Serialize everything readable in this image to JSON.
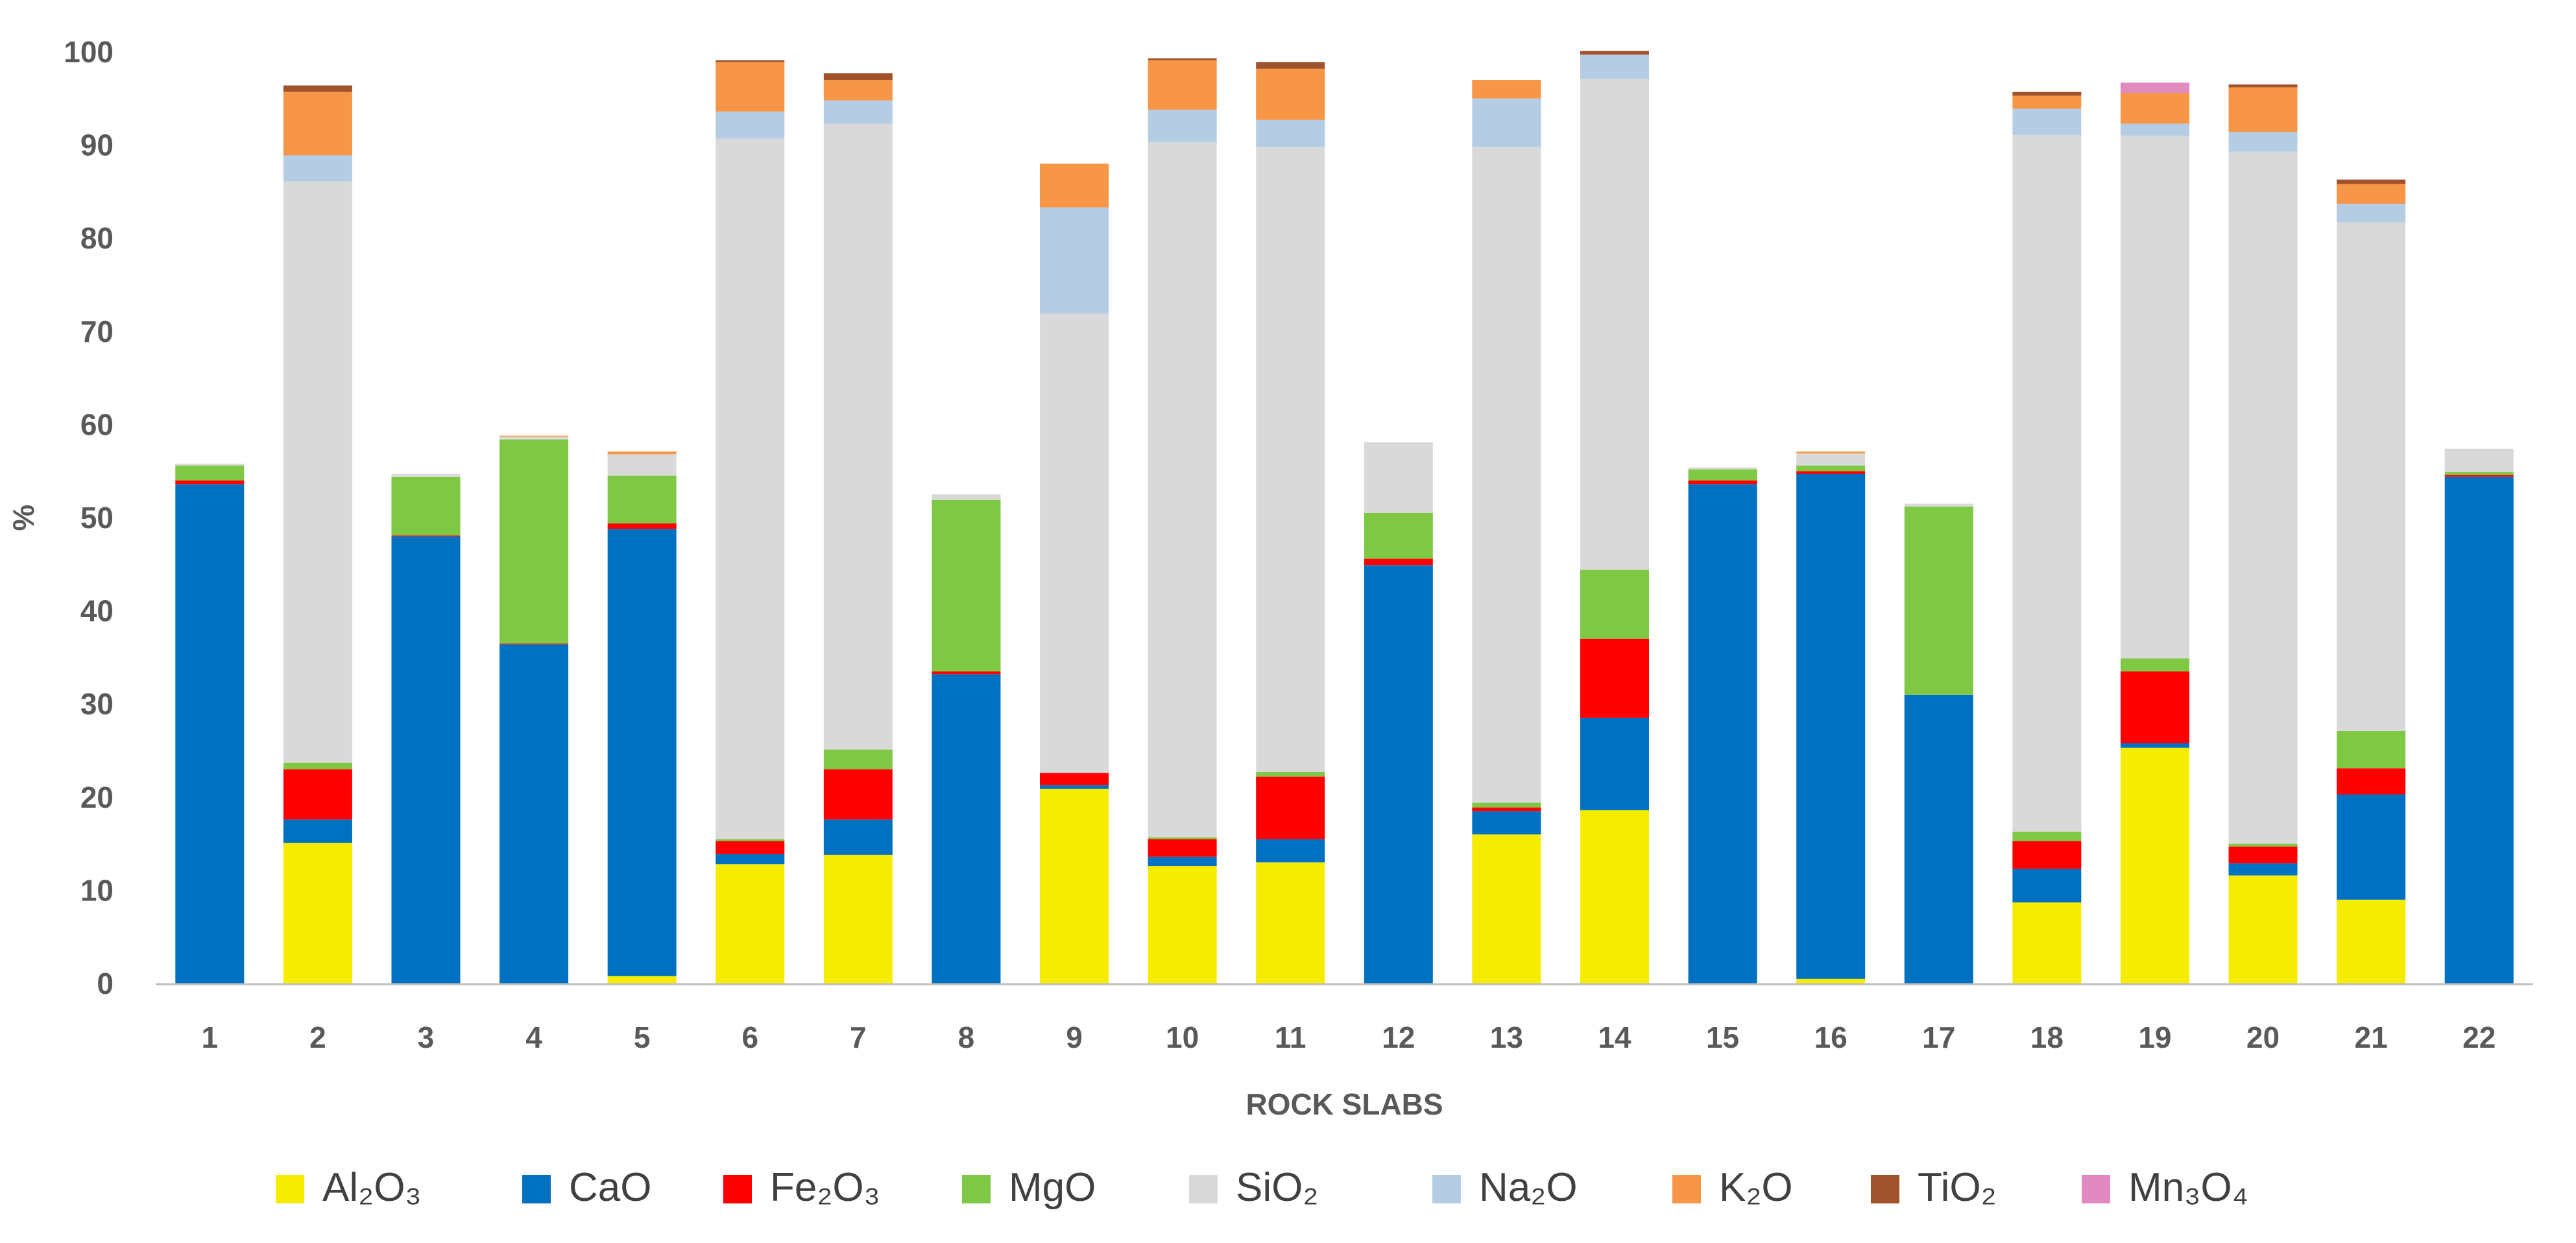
{
  "chart_data": {
    "type": "bar",
    "stacked": true,
    "title": "",
    "xlabel": "ROCK SLABS",
    "ylabel": "%",
    "ylim": [
      0,
      100
    ],
    "yticks": [
      0,
      10,
      20,
      30,
      40,
      50,
      60,
      70,
      80,
      90,
      100
    ],
    "grid": false,
    "legend_position": "bottom",
    "categories": [
      "1",
      "2",
      "3",
      "4",
      "5",
      "6",
      "7",
      "8",
      "9",
      "10",
      "11",
      "12",
      "13",
      "14",
      "15",
      "16",
      "17",
      "18",
      "19",
      "20",
      "21",
      "22"
    ],
    "series": [
      {
        "name": "Al₂O₃",
        "color": "#f5ec00",
        "values": [
          0,
          15.1,
          0,
          0,
          0.8,
          12.8,
          13.8,
          0,
          20.9,
          12.6,
          13.0,
          0,
          16.0,
          18.6,
          0,
          0.5,
          0,
          8.7,
          25.3,
          11.6,
          9.0,
          0
        ]
      },
      {
        "name": "CaO",
        "color": "#0070c0",
        "values": [
          53.6,
          2.5,
          48.0,
          36.4,
          48.0,
          1.1,
          3.8,
          33.2,
          0.4,
          1.0,
          2.5,
          44.9,
          2.5,
          9.9,
          53.6,
          54.2,
          31.0,
          3.6,
          0.5,
          1.3,
          11.3,
          54.4
        ]
      },
      {
        "name": "Fe₂O₃",
        "color": "#ff0000",
        "values": [
          0.4,
          5.4,
          0.1,
          0.1,
          0.6,
          1.4,
          5.4,
          0.3,
          1.3,
          1.9,
          6.7,
          0.7,
          0.4,
          8.5,
          0.4,
          0.3,
          0,
          3.0,
          7.7,
          1.8,
          2.8,
          0.2
        ]
      },
      {
        "name": "MgO",
        "color": "#7ec843",
        "values": [
          1.6,
          0.7,
          6.3,
          21.9,
          5.1,
          0.2,
          2.1,
          18.4,
          0,
          0.2,
          0.5,
          4.9,
          0.5,
          7.4,
          1.2,
          0.6,
          20.2,
          1.0,
          1.4,
          0.3,
          4.0,
          0.3
        ]
      },
      {
        "name": "SiO₂",
        "color": "#d9d9d9",
        "values": [
          0.2,
          62.4,
          0.3,
          0.3,
          2.3,
          75.2,
          67.2,
          0.6,
          49.3,
          74.6,
          67.1,
          7.6,
          70.4,
          52.7,
          0.2,
          1.3,
          0.3,
          74.8,
          56.1,
          74.3,
          54.6,
          2.5
        ]
      },
      {
        "name": "Na₂O",
        "color": "#b4cce4",
        "values": [
          0,
          2.8,
          0,
          0,
          0,
          2.9,
          2.5,
          0,
          11.4,
          3.5,
          2.9,
          0,
          5.2,
          2.6,
          0,
          0,
          0,
          2.8,
          1.3,
          2.1,
          2.0,
          0
        ]
      },
      {
        "name": "K₂O",
        "color": "#f79646",
        "values": [
          0,
          6.8,
          0,
          0.1,
          0.3,
          5.3,
          2.2,
          0,
          4.7,
          5.3,
          5.5,
          0,
          2.0,
          0,
          0,
          0.2,
          0,
          1.4,
          3.3,
          4.8,
          2.1,
          0
        ]
      },
      {
        "name": "TiO₂",
        "color": "#a0522d",
        "values": [
          0,
          0.7,
          0,
          0,
          0,
          0.2,
          0.7,
          0,
          0,
          0.2,
          0.7,
          0,
          0,
          0.4,
          0,
          0,
          0,
          0.4,
          0,
          0.3,
          0.5,
          0
        ]
      },
      {
        "name": "Mn₃O₄",
        "color": "#e08ac0",
        "values": [
          0,
          0,
          0,
          0,
          0,
          0,
          0,
          0,
          0,
          0,
          0,
          0,
          0,
          0,
          0,
          0,
          0,
          0,
          1.1,
          0,
          0,
          0
        ]
      }
    ]
  }
}
